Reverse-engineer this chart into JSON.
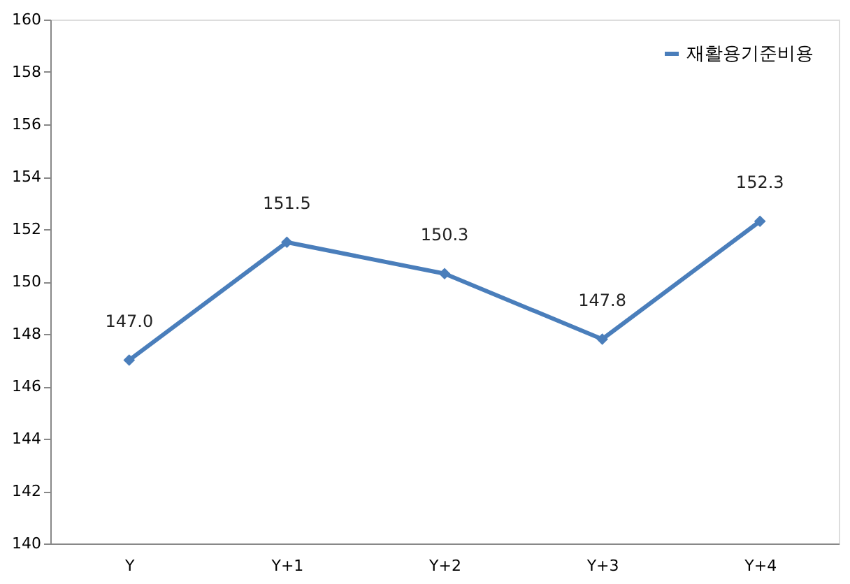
{
  "chart_data": {
    "type": "line",
    "categories": [
      "Y",
      "Y+1",
      "Y+2",
      "Y+3",
      "Y+4"
    ],
    "series": [
      {
        "name": "재활용기준비용",
        "color": "#4a7ebb",
        "values": [
          147.0,
          151.5,
          150.3,
          147.8,
          152.3
        ],
        "value_labels": [
          "147.0",
          "151.5",
          "150.3",
          "147.8",
          "152.3"
        ]
      }
    ],
    "ylim": [
      140,
      160
    ],
    "yticks": [
      140,
      142,
      144,
      146,
      148,
      150,
      152,
      154,
      156,
      158,
      160
    ],
    "grid": false,
    "legend": "top right",
    "marker": "diamond",
    "line_style": "solid"
  }
}
